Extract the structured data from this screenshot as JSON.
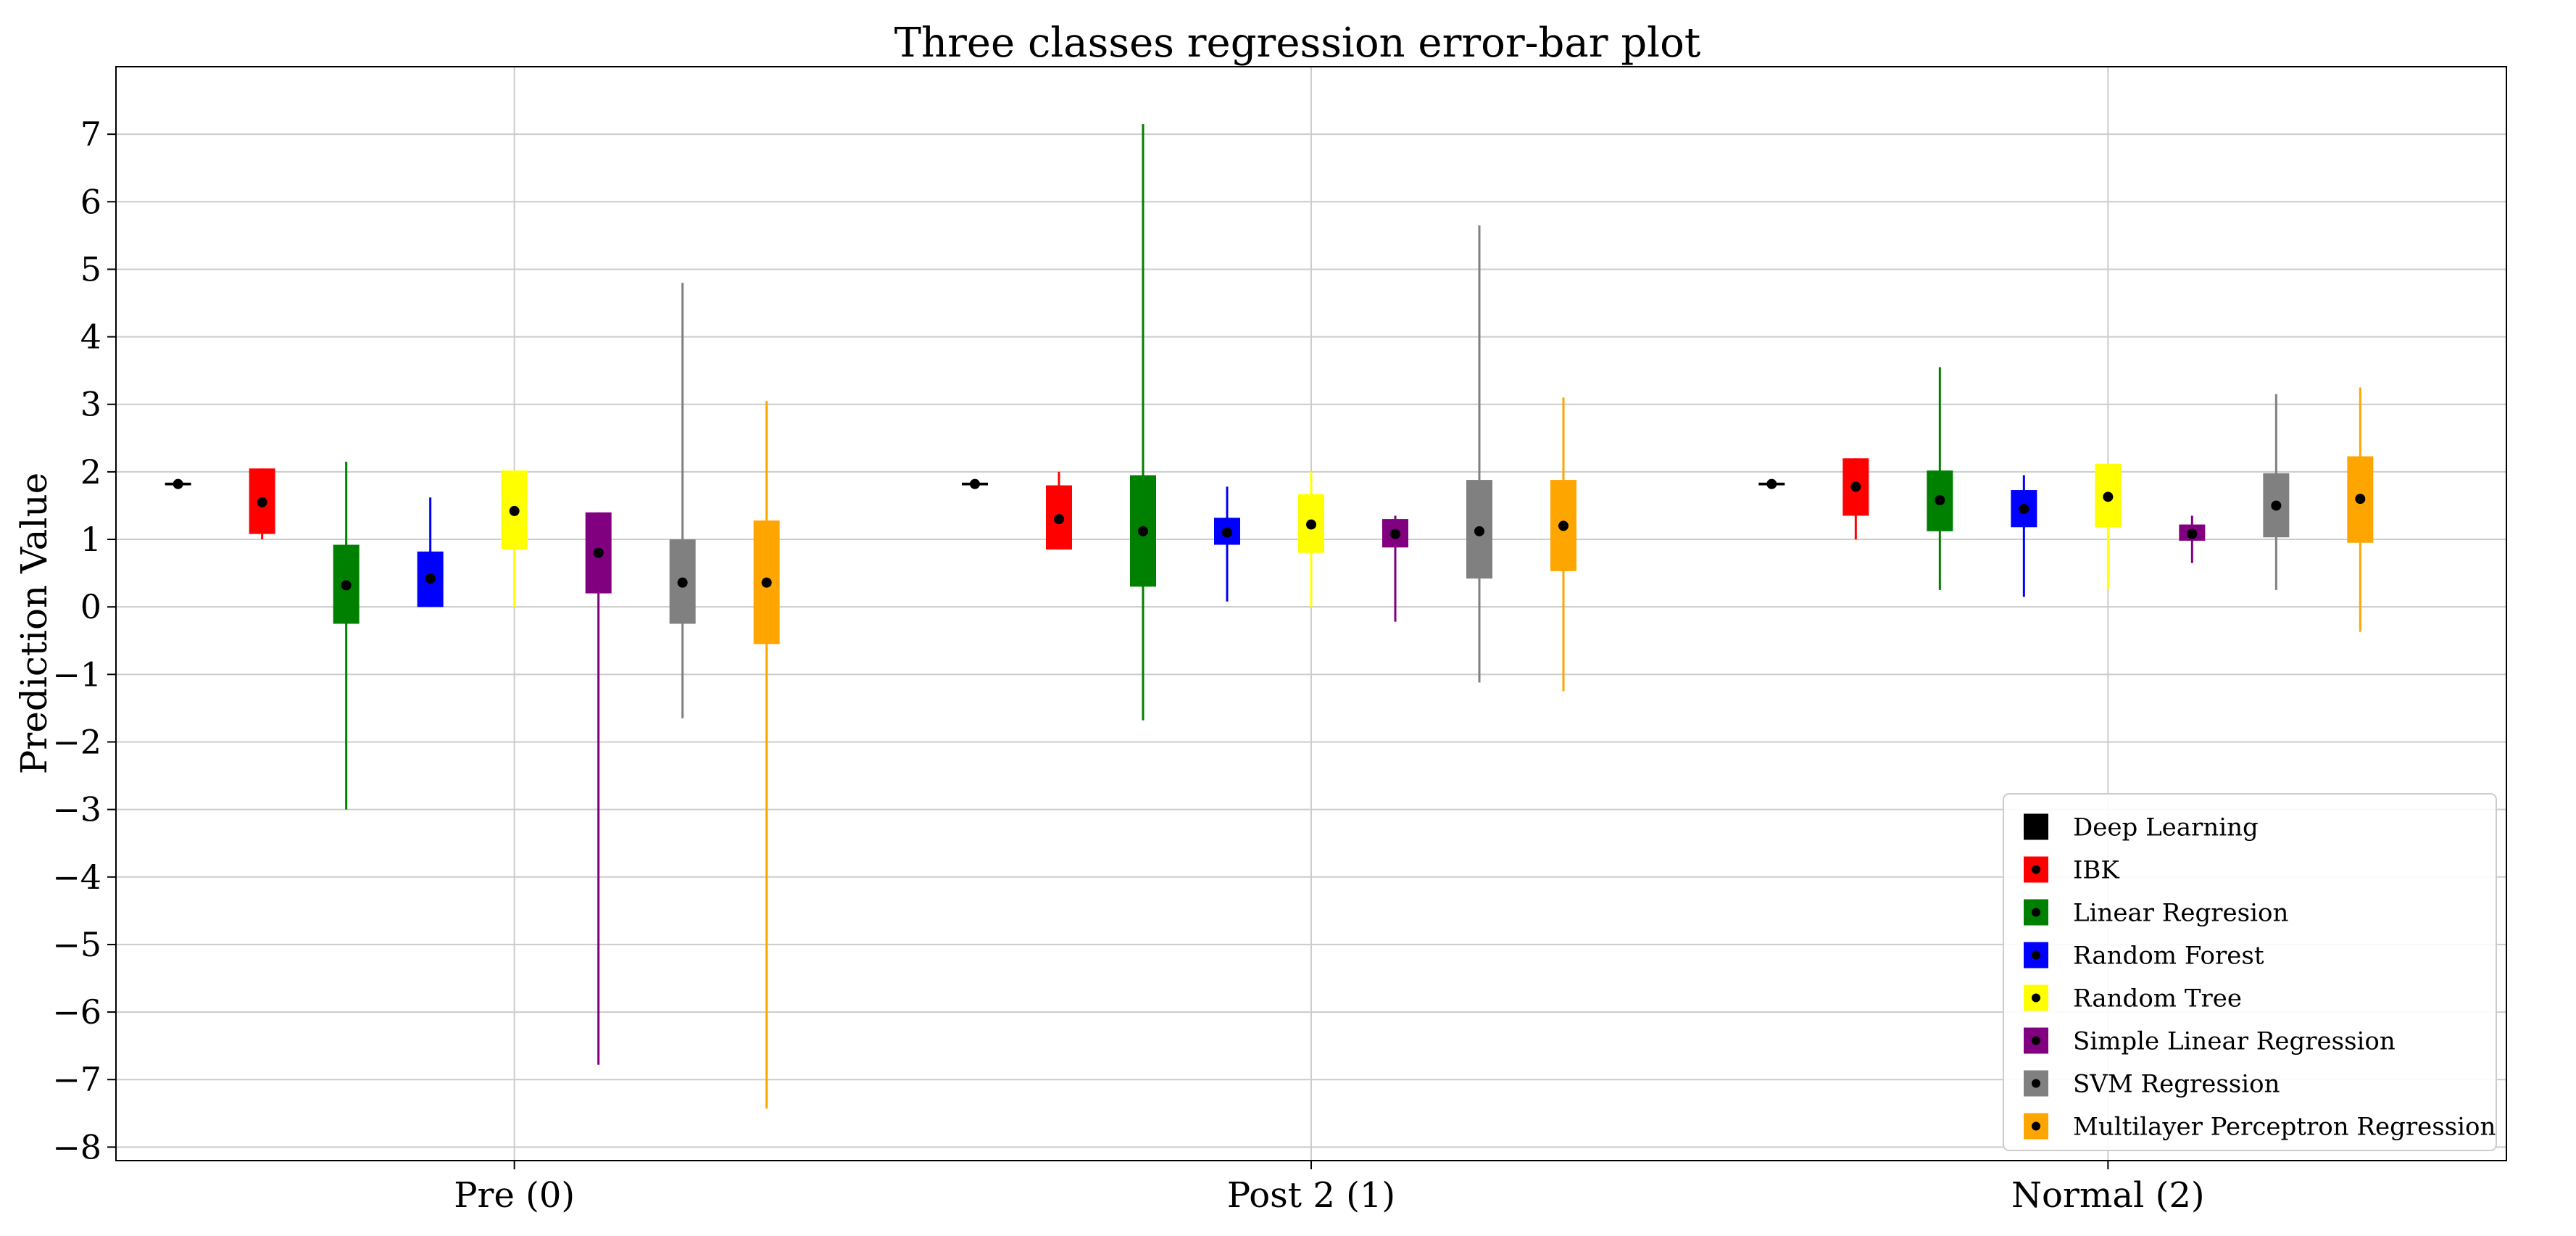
{
  "chart_data": {
    "type": "errorbar",
    "title": "Three classes regression error-bar plot",
    "xlabel": "",
    "ylabel": "Prediction Value",
    "ylim": [
      -8.2,
      8.0
    ],
    "yticks": [
      -8,
      -7,
      -6,
      -5,
      -4,
      -3,
      -2,
      -1,
      0,
      1,
      2,
      3,
      4,
      5,
      6,
      7
    ],
    "grid": true,
    "legend_position": "bottom-right",
    "categories": [
      "Pre (0)",
      "Post 2 (1)",
      "Normal (2)"
    ],
    "series": [
      {
        "name": "Deep Learning",
        "color": "#000000",
        "data": [
          {
            "mean": 1.82,
            "q1": 1.8,
            "q3": 1.84,
            "min": 1.8,
            "max": 1.84
          },
          {
            "mean": 1.82,
            "q1": 1.8,
            "q3": 1.84,
            "min": 1.8,
            "max": 1.84
          },
          {
            "mean": 1.82,
            "q1": 1.8,
            "q3": 1.84,
            "min": 1.8,
            "max": 1.84
          }
        ]
      },
      {
        "name": "IBK",
        "color": "#ff0000",
        "data": [
          {
            "mean": 1.55,
            "q1": 1.08,
            "q3": 2.05,
            "min": 1.0,
            "max": 2.05
          },
          {
            "mean": 1.3,
            "q1": 0.85,
            "q3": 1.8,
            "min": 0.85,
            "max": 2.0
          },
          {
            "mean": 1.78,
            "q1": 1.35,
            "q3": 2.2,
            "min": 1.0,
            "max": 2.2
          }
        ]
      },
      {
        "name": "Linear Regresion",
        "color": "#008000",
        "data": [
          {
            "mean": 0.32,
            "q1": -0.25,
            "q3": 0.92,
            "min": -3.0,
            "max": 2.15
          },
          {
            "mean": 1.12,
            "q1": 0.3,
            "q3": 1.95,
            "min": -1.68,
            "max": 7.15
          },
          {
            "mean": 1.58,
            "q1": 1.12,
            "q3": 2.02,
            "min": 0.25,
            "max": 3.55
          }
        ]
      },
      {
        "name": "Random Forest",
        "color": "#0000ff",
        "data": [
          {
            "mean": 0.42,
            "q1": 0.0,
            "q3": 0.82,
            "min": 0.0,
            "max": 1.62
          },
          {
            "mean": 1.1,
            "q1": 0.92,
            "q3": 1.32,
            "min": 0.08,
            "max": 1.78
          },
          {
            "mean": 1.45,
            "q1": 1.18,
            "q3": 1.73,
            "min": 0.15,
            "max": 1.95
          }
        ]
      },
      {
        "name": "Random Tree",
        "color": "#ffff00",
        "data": [
          {
            "mean": 1.42,
            "q1": 0.85,
            "q3": 2.02,
            "min": 0.0,
            "max": 2.02
          },
          {
            "mean": 1.22,
            "q1": 0.8,
            "q3": 1.67,
            "min": 0.0,
            "max": 2.0
          },
          {
            "mean": 1.63,
            "q1": 1.18,
            "q3": 2.12,
            "min": 0.25,
            "max": 2.12
          }
        ]
      },
      {
        "name": "Simple Linear Regression",
        "color": "#800080",
        "data": [
          {
            "mean": 0.8,
            "q1": 0.2,
            "q3": 1.4,
            "min": -6.78,
            "max": 1.4
          },
          {
            "mean": 1.08,
            "q1": 0.88,
            "q3": 1.3,
            "min": -0.22,
            "max": 1.35
          },
          {
            "mean": 1.08,
            "q1": 0.98,
            "q3": 1.22,
            "min": 0.65,
            "max": 1.35
          }
        ]
      },
      {
        "name": "SVM Regression",
        "color": "#808080",
        "data": [
          {
            "mean": 0.36,
            "q1": -0.25,
            "q3": 1.0,
            "min": -1.65,
            "max": 4.8
          },
          {
            "mean": 1.12,
            "q1": 0.42,
            "q3": 1.88,
            "min": -1.12,
            "max": 5.65
          },
          {
            "mean": 1.5,
            "q1": 1.03,
            "q3": 1.98,
            "min": 0.25,
            "max": 3.15
          }
        ]
      },
      {
        "name": "Multilayer Perceptron Regression",
        "color": "#ffa500",
        "data": [
          {
            "mean": 0.36,
            "q1": -0.55,
            "q3": 1.28,
            "min": -7.43,
            "max": 3.05
          },
          {
            "mean": 1.2,
            "q1": 0.53,
            "q3": 1.88,
            "min": -1.25,
            "max": 3.1
          },
          {
            "mean": 1.6,
            "q1": 0.95,
            "q3": 2.23,
            "min": -0.37,
            "max": 3.25
          }
        ]
      }
    ]
  }
}
